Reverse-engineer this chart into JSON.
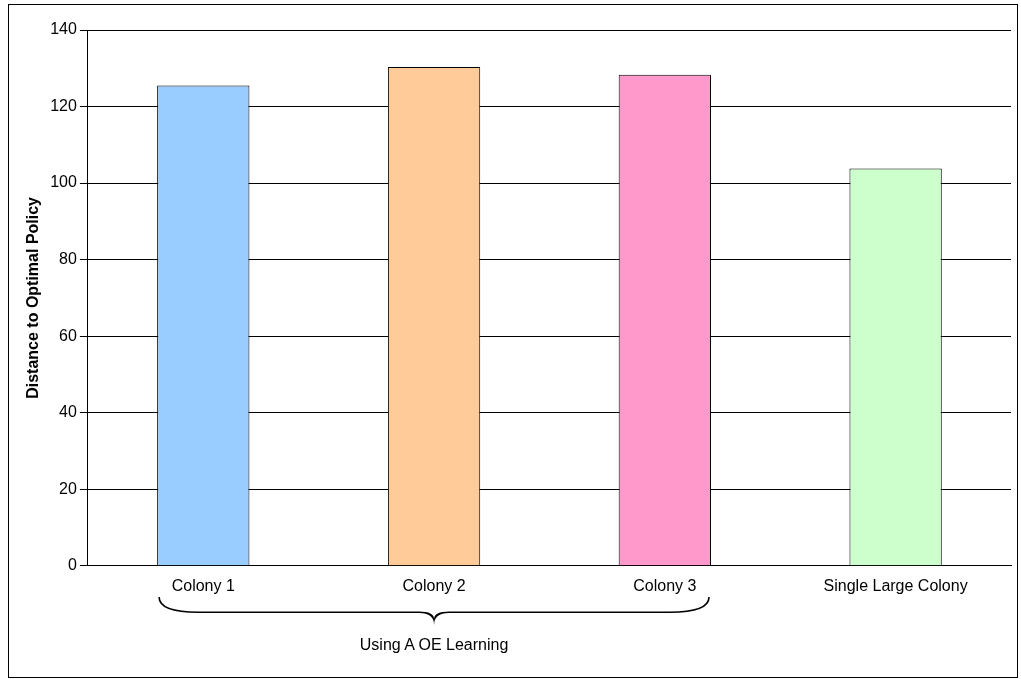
{
  "chart_data": {
    "type": "bar",
    "ylabel": "Distance to Optimal Policy",
    "categories": [
      "Colony 1",
      "Colony 2",
      "Colony 3",
      "Single Large Colony"
    ],
    "values": [
      125.5,
      130.3,
      128.3,
      103.8
    ],
    "colors": [
      "#99ccff",
      "#ffcc99",
      "#ff99cc",
      "#ccffcc"
    ],
    "ylim": [
      0,
      140
    ],
    "yticks": [
      0,
      20,
      40,
      60,
      80,
      100,
      120,
      140
    ],
    "grid": "y",
    "legend": false,
    "annotations": [
      "Using A OE Learning"
    ]
  }
}
